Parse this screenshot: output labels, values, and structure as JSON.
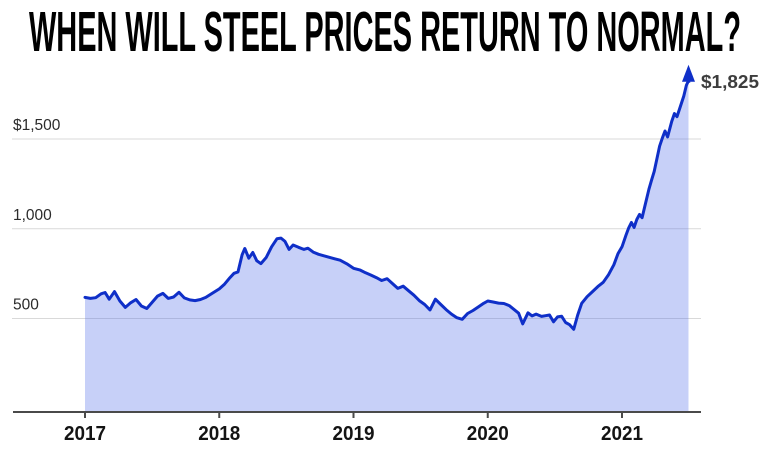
{
  "page": {
    "background": "#ffffff"
  },
  "chart_data": {
    "type": "area",
    "title": "WHEN WILL STEEL PRICES RETURN TO NORMAL?",
    "legend": "none",
    "grid": true,
    "x_range": [
      2017.0,
      2021.5
    ],
    "y_range": [
      0,
      1900
    ],
    "x_axis": {
      "ticks": [
        {
          "value": 2017,
          "label": "2017"
        },
        {
          "value": 2018,
          "label": "2018"
        },
        {
          "value": 2019,
          "label": "2019"
        },
        {
          "value": 2020,
          "label": "2020"
        },
        {
          "value": 2021,
          "label": "2021"
        }
      ]
    },
    "y_axis": {
      "ticks": [
        {
          "value": 500,
          "label": "500"
        },
        {
          "value": 1000,
          "label": "1,000"
        },
        {
          "value": 1500,
          "label": "$1,500"
        }
      ]
    },
    "annotation": {
      "label": "$1,825",
      "value": 1825
    },
    "colors": {
      "line": "#0f2fc8",
      "fill": "rgba(86,113,235,0.33)",
      "gridline": "#d9d9d9",
      "axis": "#4a4a4a",
      "title": "#000000",
      "annotation": "#3d3d3d",
      "x_tick_label": "#141414",
      "y_tick_label": "#2b2b2b"
    },
    "series": [
      {
        "name": "steel-price-usd",
        "points": [
          [
            2017.0,
            618
          ],
          [
            2017.04,
            612
          ],
          [
            2017.08,
            616
          ],
          [
            2017.12,
            638
          ],
          [
            2017.15,
            645
          ],
          [
            2017.18,
            608
          ],
          [
            2017.22,
            650
          ],
          [
            2017.26,
            598
          ],
          [
            2017.3,
            562
          ],
          [
            2017.34,
            588
          ],
          [
            2017.38,
            606
          ],
          [
            2017.42,
            570
          ],
          [
            2017.46,
            556
          ],
          [
            2017.5,
            590
          ],
          [
            2017.54,
            625
          ],
          [
            2017.58,
            640
          ],
          [
            2017.62,
            612
          ],
          [
            2017.66,
            620
          ],
          [
            2017.7,
            646
          ],
          [
            2017.74,
            615
          ],
          [
            2017.78,
            604
          ],
          [
            2017.82,
            600
          ],
          [
            2017.86,
            606
          ],
          [
            2017.9,
            618
          ],
          [
            2017.95,
            642
          ],
          [
            2018.0,
            665
          ],
          [
            2018.04,
            692
          ],
          [
            2018.08,
            728
          ],
          [
            2018.11,
            752
          ],
          [
            2018.14,
            760
          ],
          [
            2018.17,
            855
          ],
          [
            2018.19,
            890
          ],
          [
            2018.22,
            836
          ],
          [
            2018.25,
            868
          ],
          [
            2018.28,
            822
          ],
          [
            2018.31,
            806
          ],
          [
            2018.35,
            840
          ],
          [
            2018.39,
            900
          ],
          [
            2018.43,
            945
          ],
          [
            2018.46,
            948
          ],
          [
            2018.49,
            930
          ],
          [
            2018.52,
            885
          ],
          [
            2018.55,
            910
          ],
          [
            2018.59,
            897
          ],
          [
            2018.63,
            885
          ],
          [
            2018.66,
            892
          ],
          [
            2018.7,
            870
          ],
          [
            2018.74,
            858
          ],
          [
            2018.8,
            845
          ],
          [
            2018.86,
            833
          ],
          [
            2018.9,
            825
          ],
          [
            2018.95,
            805
          ],
          [
            2019.0,
            780
          ],
          [
            2019.05,
            770
          ],
          [
            2019.09,
            755
          ],
          [
            2019.13,
            742
          ],
          [
            2019.17,
            728
          ],
          [
            2019.21,
            712
          ],
          [
            2019.25,
            722
          ],
          [
            2019.29,
            695
          ],
          [
            2019.33,
            668
          ],
          [
            2019.37,
            680
          ],
          [
            2019.41,
            655
          ],
          [
            2019.45,
            630
          ],
          [
            2019.49,
            600
          ],
          [
            2019.53,
            578
          ],
          [
            2019.57,
            548
          ],
          [
            2019.61,
            608
          ],
          [
            2019.65,
            578
          ],
          [
            2019.69,
            550
          ],
          [
            2019.73,
            525
          ],
          [
            2019.77,
            505
          ],
          [
            2019.81,
            496
          ],
          [
            2019.85,
            528
          ],
          [
            2019.89,
            545
          ],
          [
            2019.93,
            565
          ],
          [
            2019.97,
            585
          ],
          [
            2020.0,
            598
          ],
          [
            2020.04,
            592
          ],
          [
            2020.08,
            586
          ],
          [
            2020.12,
            584
          ],
          [
            2020.16,
            572
          ],
          [
            2020.2,
            548
          ],
          [
            2020.23,
            530
          ],
          [
            2020.26,
            470
          ],
          [
            2020.3,
            532
          ],
          [
            2020.33,
            515
          ],
          [
            2020.36,
            525
          ],
          [
            2020.4,
            512
          ],
          [
            2020.43,
            516
          ],
          [
            2020.46,
            520
          ],
          [
            2020.49,
            482
          ],
          [
            2020.52,
            510
          ],
          [
            2020.55,
            513
          ],
          [
            2020.58,
            478
          ],
          [
            2020.61,
            466
          ],
          [
            2020.64,
            440
          ],
          [
            2020.67,
            520
          ],
          [
            2020.7,
            585
          ],
          [
            2020.74,
            622
          ],
          [
            2020.78,
            650
          ],
          [
            2020.82,
            678
          ],
          [
            2020.86,
            702
          ],
          [
            2020.9,
            745
          ],
          [
            2020.94,
            800
          ],
          [
            2020.97,
            862
          ],
          [
            2021.0,
            900
          ],
          [
            2021.03,
            965
          ],
          [
            2021.05,
            1005
          ],
          [
            2021.07,
            1035
          ],
          [
            2021.09,
            1008
          ],
          [
            2021.11,
            1052
          ],
          [
            2021.13,
            1080
          ],
          [
            2021.15,
            1062
          ],
          [
            2021.17,
            1125
          ],
          [
            2021.2,
            1220
          ],
          [
            2021.22,
            1270
          ],
          [
            2021.24,
            1320
          ],
          [
            2021.26,
            1390
          ],
          [
            2021.28,
            1460
          ],
          [
            2021.3,
            1505
          ],
          [
            2021.32,
            1545
          ],
          [
            2021.34,
            1512
          ],
          [
            2021.37,
            1598
          ],
          [
            2021.39,
            1642
          ],
          [
            2021.41,
            1625
          ],
          [
            2021.43,
            1670
          ],
          [
            2021.46,
            1740
          ],
          [
            2021.48,
            1800
          ],
          [
            2021.495,
            1825
          ]
        ]
      }
    ]
  }
}
